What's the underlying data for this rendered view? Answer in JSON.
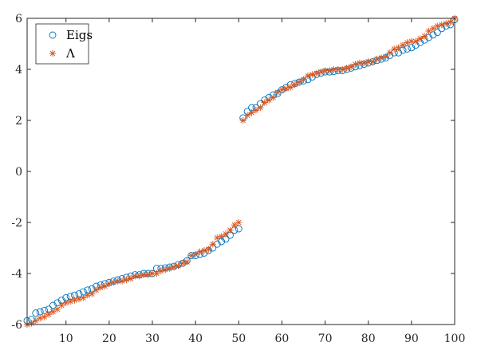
{
  "chart_data": {
    "type": "scatter",
    "title": "",
    "xlabel": "",
    "ylabel": "",
    "xlim": [
      1,
      100
    ],
    "ylim": [
      -6,
      6
    ],
    "grid": false,
    "legend_position": "top-left",
    "x_ticks": [
      10,
      20,
      30,
      40,
      50,
      60,
      70,
      80,
      90,
      100
    ],
    "y_ticks": [
      -6,
      -4,
      -2,
      0,
      2,
      4,
      6
    ],
    "x_tick_labels": [
      "10",
      "20",
      "30",
      "40",
      "50",
      "60",
      "70",
      "80",
      "90",
      "100"
    ],
    "y_tick_labels": [
      "-6",
      "-4",
      "-2",
      "0",
      "2",
      "4",
      "6"
    ],
    "x": [
      1,
      2,
      3,
      4,
      5,
      6,
      7,
      8,
      9,
      10,
      11,
      12,
      13,
      14,
      15,
      16,
      17,
      18,
      19,
      20,
      21,
      22,
      23,
      24,
      25,
      26,
      27,
      28,
      29,
      30,
      31,
      32,
      33,
      34,
      35,
      36,
      37,
      38,
      39,
      40,
      41,
      42,
      43,
      44,
      45,
      46,
      47,
      48,
      49,
      50,
      51,
      52,
      53,
      54,
      55,
      56,
      57,
      58,
      59,
      60,
      61,
      62,
      63,
      64,
      65,
      66,
      67,
      68,
      69,
      70,
      71,
      72,
      73,
      74,
      75,
      76,
      77,
      78,
      79,
      80,
      81,
      82,
      83,
      84,
      85,
      86,
      87,
      88,
      89,
      90,
      91,
      92,
      93,
      94,
      95,
      96,
      97,
      98,
      99,
      100
    ],
    "series": [
      {
        "name": "Eigs",
        "marker": "circle",
        "color": "#0072BD",
        "values": [
          -5.85,
          -5.8,
          -5.55,
          -5.5,
          -5.45,
          -5.4,
          -5.25,
          -5.15,
          -5.05,
          -4.95,
          -4.9,
          -4.85,
          -4.8,
          -4.72,
          -4.65,
          -4.6,
          -4.5,
          -4.45,
          -4.4,
          -4.35,
          -4.3,
          -4.25,
          -4.2,
          -4.15,
          -4.1,
          -4.05,
          -4.05,
          -4.0,
          -4.0,
          -4.0,
          -3.8,
          -3.8,
          -3.78,
          -3.75,
          -3.72,
          -3.65,
          -3.6,
          -3.5,
          -3.3,
          -3.3,
          -3.25,
          -3.2,
          -3.1,
          -3.0,
          -2.85,
          -2.75,
          -2.65,
          -2.5,
          -2.3,
          -2.25,
          2.1,
          2.35,
          2.5,
          2.5,
          2.65,
          2.8,
          2.9,
          3.0,
          3.05,
          3.2,
          3.3,
          3.4,
          3.45,
          3.5,
          3.55,
          3.6,
          3.7,
          3.8,
          3.85,
          3.9,
          3.9,
          3.92,
          3.95,
          3.95,
          4.0,
          4.05,
          4.1,
          4.15,
          4.2,
          4.25,
          4.3,
          4.35,
          4.4,
          4.45,
          4.55,
          4.65,
          4.65,
          4.75,
          4.8,
          4.85,
          4.95,
          5.05,
          5.15,
          5.25,
          5.35,
          5.45,
          5.6,
          5.7,
          5.75,
          5.95
        ]
      },
      {
        "name": "Λ",
        "marker": "asterisk",
        "color": "#D95319",
        "values": [
          -6.0,
          -5.95,
          -5.85,
          -5.75,
          -5.7,
          -5.6,
          -5.5,
          -5.4,
          -5.25,
          -5.15,
          -5.1,
          -5.05,
          -5.0,
          -4.95,
          -4.85,
          -4.8,
          -4.65,
          -4.55,
          -4.5,
          -4.4,
          -4.35,
          -4.3,
          -4.3,
          -4.25,
          -4.2,
          -4.1,
          -4.1,
          -4.05,
          -4.05,
          -4.0,
          -4.0,
          -3.9,
          -3.85,
          -3.8,
          -3.75,
          -3.7,
          -3.6,
          -3.55,
          -3.3,
          -3.25,
          -3.15,
          -3.1,
          -3.05,
          -2.85,
          -2.6,
          -2.55,
          -2.45,
          -2.3,
          -2.1,
          -2.0,
          2.0,
          2.2,
          2.3,
          2.4,
          2.5,
          2.7,
          2.8,
          2.9,
          3.1,
          3.2,
          3.25,
          3.3,
          3.4,
          3.5,
          3.6,
          3.75,
          3.8,
          3.85,
          3.9,
          3.95,
          3.95,
          4.0,
          4.0,
          4.0,
          4.05,
          4.1,
          4.2,
          4.25,
          4.25,
          4.3,
          4.3,
          4.4,
          4.45,
          4.5,
          4.65,
          4.8,
          4.85,
          4.95,
          5.05,
          5.1,
          5.1,
          5.2,
          5.3,
          5.5,
          5.6,
          5.7,
          5.75,
          5.8,
          5.85,
          6.0
        ]
      }
    ]
  }
}
